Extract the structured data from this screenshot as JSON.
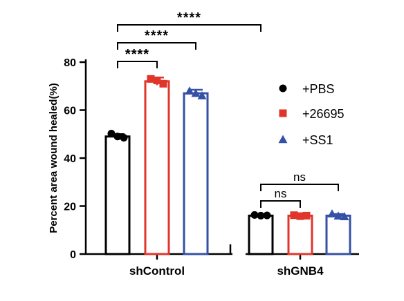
{
  "chart_data": {
    "type": "bar",
    "ylabel": "Percent area wound healed(%)",
    "xlabel": "",
    "ylim": [
      0,
      80
    ],
    "yticks": [
      0,
      20,
      40,
      60,
      80
    ],
    "groups": [
      "shControl",
      "shGNB4"
    ],
    "series": [
      {
        "name": "+PBS",
        "color": "#000000",
        "marker": "circle",
        "values": [
          49,
          16
        ],
        "errors": [
          1.0,
          0.6
        ],
        "points": [
          [
            50.2,
            49.0,
            48.5
          ],
          [
            16.3,
            16.0,
            16.1
          ]
        ]
      },
      {
        "name": "+26695",
        "color": "#e0352b",
        "marker": "square",
        "values": [
          72,
          16
        ],
        "errors": [
          1.6,
          0.5
        ],
        "points": [
          [
            73.0,
            72.4,
            71.0
          ],
          [
            16.2,
            15.8,
            16.0
          ]
        ]
      },
      {
        "name": "+SS1",
        "color": "#3451a6",
        "marker": "triangle",
        "values": [
          67,
          16
        ],
        "errors": [
          1.5,
          0.7
        ],
        "points": [
          [
            68.0,
            67.0,
            66.0
          ],
          [
            16.8,
            15.9,
            15.6
          ]
        ]
      }
    ],
    "legend_position": "right",
    "annotations": [
      {
        "from_group": 0,
        "from_series": 0,
        "to_group": 0,
        "to_series": 1,
        "label": "****"
      },
      {
        "from_group": 0,
        "from_series": 0,
        "to_group": 0,
        "to_series": 2,
        "label": "****"
      },
      {
        "from_group": 0,
        "from_series": 0,
        "to_group": 1,
        "to_series": 0,
        "label": "****"
      },
      {
        "from_group": 1,
        "from_series": 0,
        "to_group": 1,
        "to_series": 1,
        "label": "ns"
      },
      {
        "from_group": 1,
        "from_series": 0,
        "to_group": 1,
        "to_series": 2,
        "label": "ns"
      }
    ]
  }
}
